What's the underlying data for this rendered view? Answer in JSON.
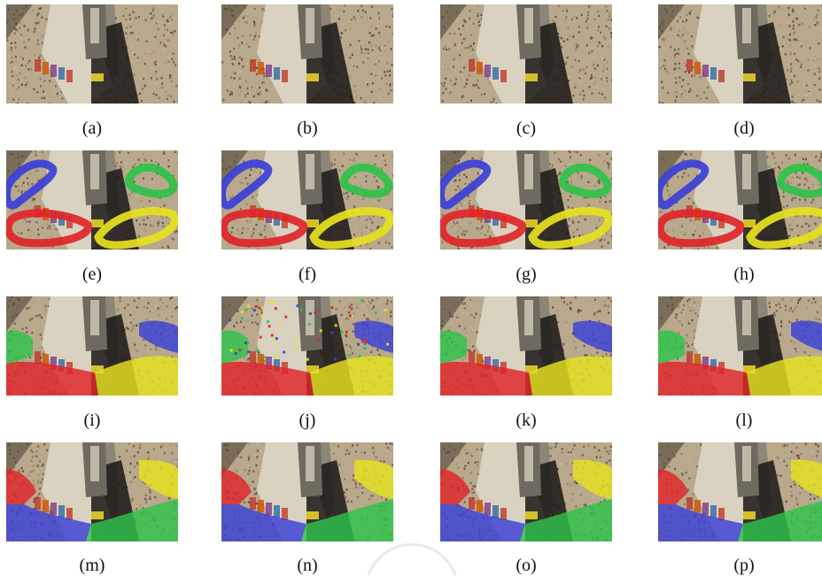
{
  "figure": {
    "panels": [
      {
        "label": "(a)",
        "overlay": "none"
      },
      {
        "label": "(b)",
        "overlay": "none"
      },
      {
        "label": "(c)",
        "overlay": "none"
      },
      {
        "label": "(d)",
        "overlay": "none"
      },
      {
        "label": "(e)",
        "overlay": "rings"
      },
      {
        "label": "(f)",
        "overlay": "rings"
      },
      {
        "label": "(g)",
        "overlay": "rings"
      },
      {
        "label": "(h)",
        "overlay": "rings"
      },
      {
        "label": "(i)",
        "overlay": "seg1"
      },
      {
        "label": "(j)",
        "overlay": "seg1-noisy"
      },
      {
        "label": "(k)",
        "overlay": "seg1"
      },
      {
        "label": "(l)",
        "overlay": "seg1"
      },
      {
        "label": "(m)",
        "overlay": "seg2"
      },
      {
        "label": "(n)",
        "overlay": "seg2"
      },
      {
        "label": "(o)",
        "overlay": "seg2"
      },
      {
        "label": "(p)",
        "overlay": "seg2"
      }
    ],
    "colors": {
      "blue": "#3b3fd6",
      "red": "#e0252a",
      "green": "#2ec24a",
      "yellow": "#e6e21e"
    }
  }
}
